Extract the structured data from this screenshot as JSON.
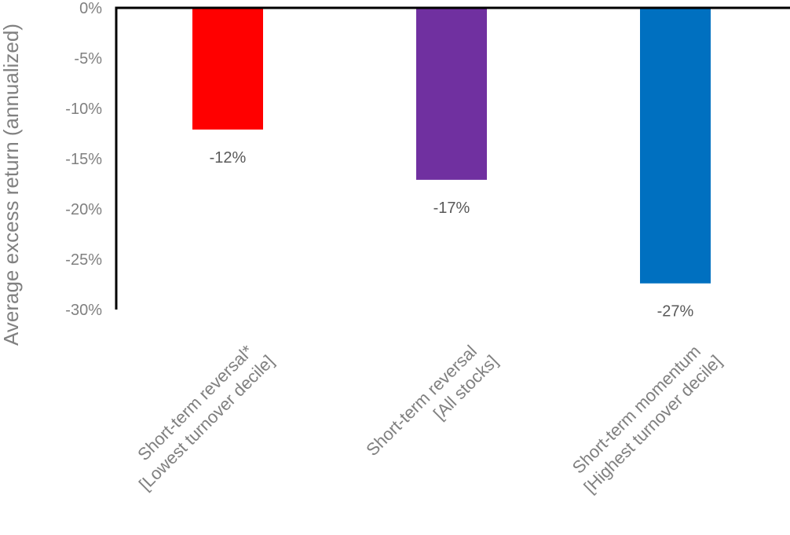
{
  "chart_data": {
    "type": "bar",
    "title": "",
    "ylabel": "Average excess return (annualized)",
    "xlabel": "",
    "ylim": [
      -30,
      0
    ],
    "y_ticks": [
      0,
      -5,
      -10,
      -15,
      -20,
      -25,
      -30
    ],
    "y_tick_labels": [
      "0%",
      "-5%",
      "-10%",
      "-15%",
      "-20%",
      "-25%",
      "-30%"
    ],
    "grid": false,
    "legend": "none",
    "categories": [
      {
        "line1": "Short-term reversal*",
        "line2": "[Lowest turnover decile]"
      },
      {
        "line1": "Short-term reversal",
        "line2": "[All stocks]"
      },
      {
        "line1": "Short-term momentum",
        "line2": "[Highest turnover decile]"
      }
    ],
    "values": [
      -12.1,
      -17.1,
      -27.4
    ],
    "data_labels": [
      "-12%",
      "-17%",
      "-27%"
    ],
    "colors": [
      "#ff0000",
      "#7030a0",
      "#0070c0"
    ]
  }
}
